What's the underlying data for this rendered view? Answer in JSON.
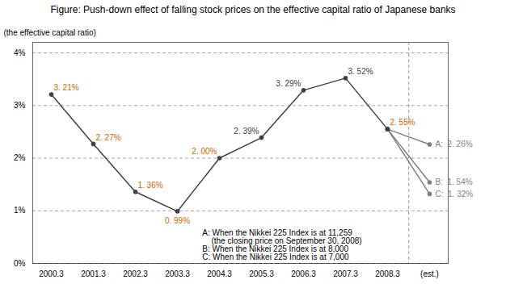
{
  "chart_data": {
    "type": "line",
    "title": "Figure: Push-down effect of falling stock prices on the effective capital ratio of Japanese banks",
    "ylabel": "(the effective capital ratio)",
    "categories": [
      "2000.3",
      "2001.3",
      "2002.3",
      "2003.3",
      "2004.3",
      "2005.3",
      "2006.3",
      "2007.3",
      "2008.3",
      "(est.)"
    ],
    "series": [
      {
        "values": [
          3.21,
          2.27,
          1.36,
          0.99,
          2.0,
          2.39,
          3.29,
          3.52,
          2.55,
          null
        ],
        "value_labels": [
          "3. 21%",
          "2. 27%",
          "1. 36%",
          "0. 99%",
          "2. 00%",
          "2. 39%",
          "3. 29%",
          "3. 52%",
          "2. 55%",
          null
        ],
        "label_colors": [
          "#cc6600",
          "#cc6600",
          "#cc6600",
          "#cc6600",
          "#cc6600",
          "#404040",
          "#404040",
          "#404040",
          "#cc6600",
          null
        ],
        "color": "#404040",
        "marker": "circle"
      },
      {
        "values": [
          null,
          null,
          null,
          null,
          null,
          null,
          null,
          null,
          2.55,
          2.26
        ],
        "value_labels": [
          null,
          null,
          null,
          null,
          null,
          null,
          null,
          null,
          null,
          "A:  2. 26%"
        ],
        "color": "#808080",
        "marker": "circle"
      },
      {
        "values": [
          null,
          null,
          null,
          null,
          null,
          null,
          null,
          null,
          2.55,
          1.54
        ],
        "value_labels": [
          null,
          null,
          null,
          null,
          null,
          null,
          null,
          null,
          null,
          "B:  1. 54%"
        ],
        "color": "#808080",
        "marker": "circle"
      },
      {
        "values": [
          null,
          null,
          null,
          null,
          null,
          null,
          null,
          null,
          2.55,
          1.32
        ],
        "value_labels": [
          null,
          null,
          null,
          null,
          null,
          null,
          null,
          null,
          null,
          "C:  1. 32%"
        ],
        "color": "#808080",
        "marker": "circle"
      }
    ],
    "ylim": [
      0,
      4.2
    ],
    "yticks": [
      {
        "value": 0,
        "label": "0%"
      },
      {
        "value": 1,
        "label": "1%"
      },
      {
        "value": 2,
        "label": "2%"
      },
      {
        "value": 3,
        "label": "3%"
      },
      {
        "value": 4,
        "label": "4%"
      }
    ],
    "grid": true,
    "data_labels": true,
    "annotation": "A: When the Nikkei 225 Index is at 11,259\n    (the closing price on September 30, 2008)\nB: When the Nikkei 225 Index is at 8,000\nC: When the Nikkei 225 Index is at 7,000"
  }
}
